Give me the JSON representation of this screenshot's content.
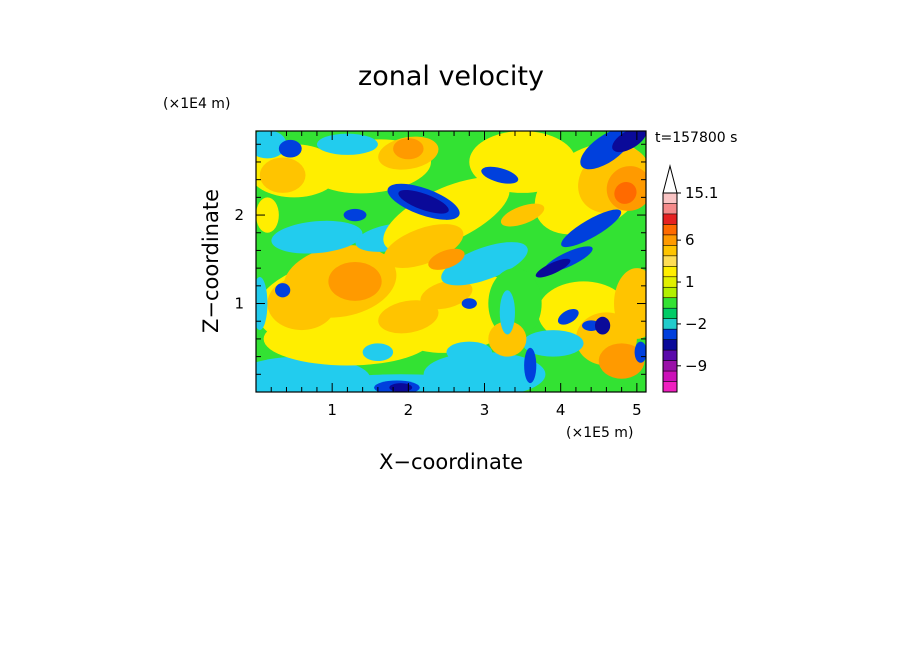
{
  "chart_data": {
    "type": "heatmap",
    "title": "zonal velocity",
    "xlabel": "X−coordinate",
    "ylabel": "Z−coordinate",
    "x_unit": "(×1E5 m)",
    "y_unit": "(×1E4 m)",
    "time_label": "t=157800 s",
    "xlim": [
      0,
      5.12
    ],
    "ylim": [
      0,
      2.95
    ],
    "x_ticks": [
      1,
      2,
      3,
      4,
      5
    ],
    "y_ticks": [
      1,
      2
    ],
    "grid": false,
    "colorbar": {
      "labels": [
        "15.1",
        "6",
        "1",
        "−2",
        "−9"
      ],
      "levels_top_to_bottom": [
        15.1,
        13,
        10,
        8,
        6,
        4,
        2,
        1.5,
        1,
        0.5,
        0,
        -1,
        -2,
        -3,
        -5,
        -7,
        -9,
        -11,
        -14
      ],
      "colors_top_to_bottom": [
        "#f9c4c4",
        "#f48a8a",
        "#e52222",
        "#ff6a00",
        "#ff9a00",
        "#ffc400",
        "#ffdd55",
        "#ffee00",
        "#e0f000",
        "#b2f000",
        "#33e233",
        "#00cc66",
        "#22cccc",
        "#0040dd",
        "#0a0a99",
        "#5a0aaa",
        "#9a10a8",
        "#cc10b8",
        "#f020c0"
      ],
      "extend_top": true
    },
    "colors": {
      "c_n13": "#0a0a99",
      "c_n9": "#0040dd",
      "c_n5": "#22ccee",
      "c_n2": "#33e233",
      "c_0": "#ffee00",
      "c_2": "#ffc400",
      "c_5": "#ff9a00",
      "c_8": "#ff6a00",
      "c_12": "#e52222"
    }
  }
}
